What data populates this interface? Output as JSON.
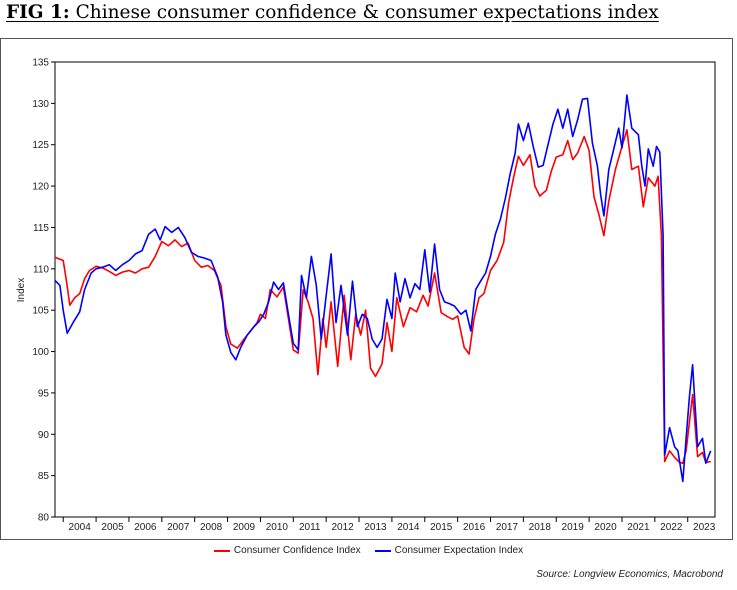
{
  "title": {
    "fig_label": "FIG 1:",
    "text": "Chinese consumer confidence & consumer expectations index"
  },
  "source": "Source: Longview Economics, Macrobond",
  "chart_data": {
    "type": "line",
    "title": "Chinese consumer confidence & consumer expectations index",
    "ylabel": "Index",
    "xlabel": "",
    "ylim": [
      80,
      135
    ],
    "yticks": [
      80,
      85,
      90,
      95,
      100,
      105,
      110,
      115,
      120,
      125,
      130,
      135
    ],
    "xlim": [
      2003.75,
      2023.83
    ],
    "xtick_labels": [
      "2004",
      "2005",
      "2006",
      "2007",
      "2008",
      "2009",
      "2010",
      "2011",
      "2012",
      "2013",
      "2014",
      "2015",
      "2016",
      "2017",
      "2018",
      "2019",
      "2020",
      "2021",
      "2022",
      "2023"
    ],
    "grid": false,
    "legend_position": "bottom",
    "series": [
      {
        "name": "Consumer Confidence Index",
        "color": "#ff0000",
        "points": [
          [
            2003.75,
            111.4
          ],
          [
            2004.0,
            111.0
          ],
          [
            2004.1,
            108.5
          ],
          [
            2004.2,
            105.6
          ],
          [
            2004.35,
            106.5
          ],
          [
            2004.5,
            107.0
          ],
          [
            2004.65,
            108.8
          ],
          [
            2004.8,
            109.8
          ],
          [
            2005.0,
            110.3
          ],
          [
            2005.2,
            110.1
          ],
          [
            2005.4,
            109.7
          ],
          [
            2005.6,
            109.2
          ],
          [
            2005.8,
            109.6
          ],
          [
            2006.0,
            109.8
          ],
          [
            2006.2,
            109.5
          ],
          [
            2006.4,
            110.0
          ],
          [
            2006.6,
            110.2
          ],
          [
            2006.8,
            111.5
          ],
          [
            2007.0,
            113.3
          ],
          [
            2007.2,
            112.8
          ],
          [
            2007.4,
            113.5
          ],
          [
            2007.6,
            112.7
          ],
          [
            2007.8,
            113.1
          ],
          [
            2008.0,
            111.0
          ],
          [
            2008.2,
            110.2
          ],
          [
            2008.4,
            110.4
          ],
          [
            2008.6,
            109.8
          ],
          [
            2008.8,
            108.0
          ],
          [
            2008.95,
            103.0
          ],
          [
            2009.1,
            100.9
          ],
          [
            2009.3,
            100.4
          ],
          [
            2009.5,
            101.5
          ],
          [
            2009.7,
            102.5
          ],
          [
            2009.9,
            103.5
          ],
          [
            2010.0,
            104.5
          ],
          [
            2010.15,
            104.0
          ],
          [
            2010.3,
            107.5
          ],
          [
            2010.5,
            106.6
          ],
          [
            2010.7,
            107.8
          ],
          [
            2010.85,
            104.0
          ],
          [
            2011.0,
            100.2
          ],
          [
            2011.15,
            99.8
          ],
          [
            2011.3,
            107.5
          ],
          [
            2011.45,
            106.0
          ],
          [
            2011.6,
            104.0
          ],
          [
            2011.75,
            97.2
          ],
          [
            2011.9,
            104.0
          ],
          [
            2012.0,
            100.5
          ],
          [
            2012.15,
            106.0
          ],
          [
            2012.35,
            98.2
          ],
          [
            2012.55,
            106.8
          ],
          [
            2012.75,
            99.0
          ],
          [
            2012.9,
            104.5
          ],
          [
            2013.05,
            102.0
          ],
          [
            2013.2,
            105.0
          ],
          [
            2013.35,
            98.0
          ],
          [
            2013.5,
            97.0
          ],
          [
            2013.7,
            98.5
          ],
          [
            2013.85,
            103.5
          ],
          [
            2014.0,
            100.0
          ],
          [
            2014.15,
            106.5
          ],
          [
            2014.35,
            103.0
          ],
          [
            2014.55,
            105.3
          ],
          [
            2014.75,
            104.8
          ],
          [
            2014.95,
            106.8
          ],
          [
            2015.1,
            105.5
          ],
          [
            2015.3,
            109.5
          ],
          [
            2015.5,
            104.7
          ],
          [
            2015.7,
            104.2
          ],
          [
            2015.85,
            103.9
          ],
          [
            2016.0,
            104.3
          ],
          [
            2016.2,
            100.5
          ],
          [
            2016.35,
            99.7
          ],
          [
            2016.5,
            104.0
          ],
          [
            2016.65,
            106.5
          ],
          [
            2016.8,
            107.0
          ],
          [
            2017.0,
            109.8
          ],
          [
            2017.2,
            111.0
          ],
          [
            2017.4,
            113.2
          ],
          [
            2017.55,
            118.0
          ],
          [
            2017.7,
            121.0
          ],
          [
            2017.85,
            123.6
          ],
          [
            2018.0,
            122.5
          ],
          [
            2018.2,
            123.8
          ],
          [
            2018.35,
            120.0
          ],
          [
            2018.5,
            118.8
          ],
          [
            2018.7,
            119.5
          ],
          [
            2018.85,
            121.8
          ],
          [
            2019.0,
            123.5
          ],
          [
            2019.2,
            123.8
          ],
          [
            2019.35,
            125.5
          ],
          [
            2019.5,
            123.2
          ],
          [
            2019.65,
            124.0
          ],
          [
            2019.85,
            126.0
          ],
          [
            2020.0,
            124.3
          ],
          [
            2020.15,
            118.7
          ],
          [
            2020.3,
            116.5
          ],
          [
            2020.45,
            114.0
          ],
          [
            2020.6,
            118.2
          ],
          [
            2020.8,
            122.0
          ],
          [
            2021.0,
            124.8
          ],
          [
            2021.15,
            126.8
          ],
          [
            2021.3,
            122.0
          ],
          [
            2021.5,
            122.4
          ],
          [
            2021.65,
            117.5
          ],
          [
            2021.8,
            121.0
          ],
          [
            2022.0,
            120.0
          ],
          [
            2022.1,
            121.2
          ],
          [
            2022.2,
            114.0
          ],
          [
            2022.3,
            86.7
          ],
          [
            2022.45,
            88.0
          ],
          [
            2022.6,
            87.2
          ],
          [
            2022.75,
            86.6
          ],
          [
            2022.85,
            86.5
          ],
          [
            2022.95,
            88.0
          ],
          [
            2023.15,
            94.8
          ],
          [
            2023.3,
            87.3
          ],
          [
            2023.45,
            87.8
          ],
          [
            2023.55,
            86.6
          ],
          [
            2023.7,
            86.7
          ]
        ]
      },
      {
        "name": "Consumer Expectation Index",
        "color": "#0000ff",
        "points": [
          [
            2003.75,
            108.6
          ],
          [
            2003.9,
            108.0
          ],
          [
            2004.0,
            105.0
          ],
          [
            2004.12,
            102.2
          ],
          [
            2004.3,
            103.5
          ],
          [
            2004.5,
            104.8
          ],
          [
            2004.65,
            107.5
          ],
          [
            2004.85,
            109.5
          ],
          [
            2005.0,
            110.0
          ],
          [
            2005.2,
            110.2
          ],
          [
            2005.4,
            110.5
          ],
          [
            2005.6,
            109.8
          ],
          [
            2005.8,
            110.5
          ],
          [
            2006.0,
            111.0
          ],
          [
            2006.2,
            111.8
          ],
          [
            2006.4,
            112.2
          ],
          [
            2006.6,
            114.2
          ],
          [
            2006.8,
            114.8
          ],
          [
            2006.95,
            113.5
          ],
          [
            2007.1,
            115.1
          ],
          [
            2007.3,
            114.4
          ],
          [
            2007.5,
            115.0
          ],
          [
            2007.7,
            113.8
          ],
          [
            2007.9,
            112.0
          ],
          [
            2008.1,
            111.5
          ],
          [
            2008.3,
            111.3
          ],
          [
            2008.5,
            111.0
          ],
          [
            2008.7,
            109.0
          ],
          [
            2008.85,
            106.0
          ],
          [
            2008.95,
            102.0
          ],
          [
            2009.1,
            99.9
          ],
          [
            2009.25,
            99.0
          ],
          [
            2009.4,
            100.5
          ],
          [
            2009.6,
            102.0
          ],
          [
            2009.8,
            103.0
          ],
          [
            2009.95,
            103.6
          ],
          [
            2010.1,
            104.5
          ],
          [
            2010.25,
            106.0
          ],
          [
            2010.4,
            108.4
          ],
          [
            2010.55,
            107.5
          ],
          [
            2010.7,
            108.3
          ],
          [
            2010.85,
            104.5
          ],
          [
            2011.0,
            101.0
          ],
          [
            2011.15,
            100.2
          ],
          [
            2011.25,
            109.2
          ],
          [
            2011.4,
            106.5
          ],
          [
            2011.55,
            111.5
          ],
          [
            2011.7,
            108.0
          ],
          [
            2011.85,
            101.5
          ],
          [
            2012.0,
            106.8
          ],
          [
            2012.15,
            111.8
          ],
          [
            2012.3,
            103.5
          ],
          [
            2012.45,
            108.0
          ],
          [
            2012.65,
            102.0
          ],
          [
            2012.8,
            108.5
          ],
          [
            2012.95,
            103.0
          ],
          [
            2013.1,
            104.5
          ],
          [
            2013.25,
            104.0
          ],
          [
            2013.4,
            101.5
          ],
          [
            2013.55,
            100.5
          ],
          [
            2013.7,
            101.5
          ],
          [
            2013.85,
            106.3
          ],
          [
            2014.0,
            104.0
          ],
          [
            2014.1,
            109.5
          ],
          [
            2014.25,
            106.0
          ],
          [
            2014.4,
            108.8
          ],
          [
            2014.55,
            106.5
          ],
          [
            2014.7,
            108.2
          ],
          [
            2014.85,
            107.5
          ],
          [
            2015.0,
            112.3
          ],
          [
            2015.15,
            107.2
          ],
          [
            2015.3,
            113.0
          ],
          [
            2015.45,
            107.5
          ],
          [
            2015.6,
            106.0
          ],
          [
            2015.75,
            105.8
          ],
          [
            2015.9,
            105.5
          ],
          [
            2016.1,
            104.5
          ],
          [
            2016.25,
            105.0
          ],
          [
            2016.4,
            102.5
          ],
          [
            2016.55,
            107.5
          ],
          [
            2016.7,
            108.5
          ],
          [
            2016.85,
            109.5
          ],
          [
            2017.0,
            111.5
          ],
          [
            2017.15,
            114.2
          ],
          [
            2017.3,
            116.0
          ],
          [
            2017.45,
            118.5
          ],
          [
            2017.6,
            121.5
          ],
          [
            2017.75,
            124.0
          ],
          [
            2017.85,
            127.5
          ],
          [
            2018.0,
            125.5
          ],
          [
            2018.15,
            127.6
          ],
          [
            2018.3,
            124.8
          ],
          [
            2018.45,
            122.3
          ],
          [
            2018.6,
            122.5
          ],
          [
            2018.75,
            125.0
          ],
          [
            2018.9,
            127.5
          ],
          [
            2019.05,
            129.3
          ],
          [
            2019.2,
            127.0
          ],
          [
            2019.35,
            129.3
          ],
          [
            2019.5,
            126.0
          ],
          [
            2019.65,
            128.0
          ],
          [
            2019.8,
            130.5
          ],
          [
            2019.95,
            130.6
          ],
          [
            2020.1,
            125.2
          ],
          [
            2020.25,
            122.5
          ],
          [
            2020.35,
            119.0
          ],
          [
            2020.45,
            116.4
          ],
          [
            2020.6,
            122.0
          ],
          [
            2020.75,
            124.5
          ],
          [
            2020.9,
            127.0
          ],
          [
            2021.0,
            124.6
          ],
          [
            2021.15,
            131.0
          ],
          [
            2021.3,
            127.0
          ],
          [
            2021.5,
            126.2
          ],
          [
            2021.6,
            122.5
          ],
          [
            2021.7,
            120.0
          ],
          [
            2021.8,
            124.5
          ],
          [
            2021.95,
            122.4
          ],
          [
            2022.05,
            124.8
          ],
          [
            2022.15,
            124.1
          ],
          [
            2022.25,
            114.0
          ],
          [
            2022.3,
            87.5
          ],
          [
            2022.45,
            90.8
          ],
          [
            2022.6,
            88.5
          ],
          [
            2022.7,
            88.0
          ],
          [
            2022.85,
            84.3
          ],
          [
            2022.95,
            89.5
          ],
          [
            2023.05,
            94.5
          ],
          [
            2023.15,
            98.4
          ],
          [
            2023.3,
            88.5
          ],
          [
            2023.45,
            89.5
          ],
          [
            2023.55,
            86.5
          ],
          [
            2023.7,
            88.0
          ]
        ]
      }
    ]
  }
}
